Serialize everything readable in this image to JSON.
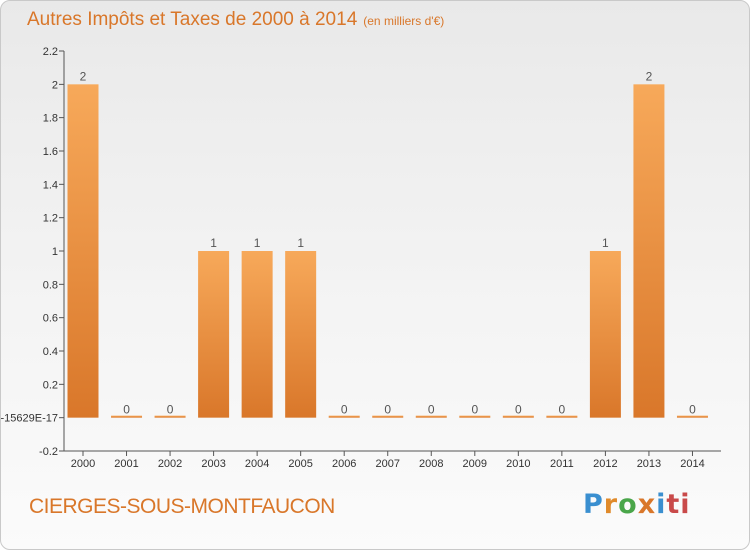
{
  "chart_data": {
    "type": "bar",
    "title": "Autres Impôts et Taxes de 2000 à 2014",
    "subtitle": "(en milliers d'€)",
    "categories": [
      "2000",
      "2001",
      "2002",
      "2003",
      "2004",
      "2005",
      "2006",
      "2007",
      "2008",
      "2009",
      "2010",
      "2011",
      "2012",
      "2013",
      "2014"
    ],
    "values": [
      2,
      0,
      0,
      1,
      1,
      1,
      0,
      0,
      0,
      0,
      0,
      0,
      1,
      2,
      0
    ],
    "value_labels": [
      "2",
      "0",
      "0",
      "1",
      "1",
      "1",
      "0",
      "0",
      "0",
      "0",
      "0",
      "0",
      "1",
      "2",
      "0"
    ],
    "ylim": [
      -0.2,
      2.2
    ],
    "yticks": [
      -0.2,
      0,
      0.2,
      0.4,
      0.6,
      0.8,
      1,
      1.2,
      1.4,
      1.6,
      1.8,
      2,
      2.2
    ],
    "ytick_labels": [
      "-0.2",
      "-15629E-17",
      "0.2",
      "0.4",
      "0.6",
      "0.8",
      "1",
      "1.2",
      "1.4",
      "1.6",
      "1.8",
      "2",
      "2.2"
    ],
    "xlabel": "",
    "ylabel": "",
    "grid": false,
    "colors": {
      "bar_light": "#f7a95a",
      "bar_dark": "#d9772a",
      "axis": "#555555",
      "text": "#333333"
    }
  },
  "footer": {
    "commune": "CIERGES-SOUS-MONTFAUCON",
    "logo_letters": [
      "P",
      "r",
      "o",
      "x",
      "i",
      "ti"
    ]
  }
}
